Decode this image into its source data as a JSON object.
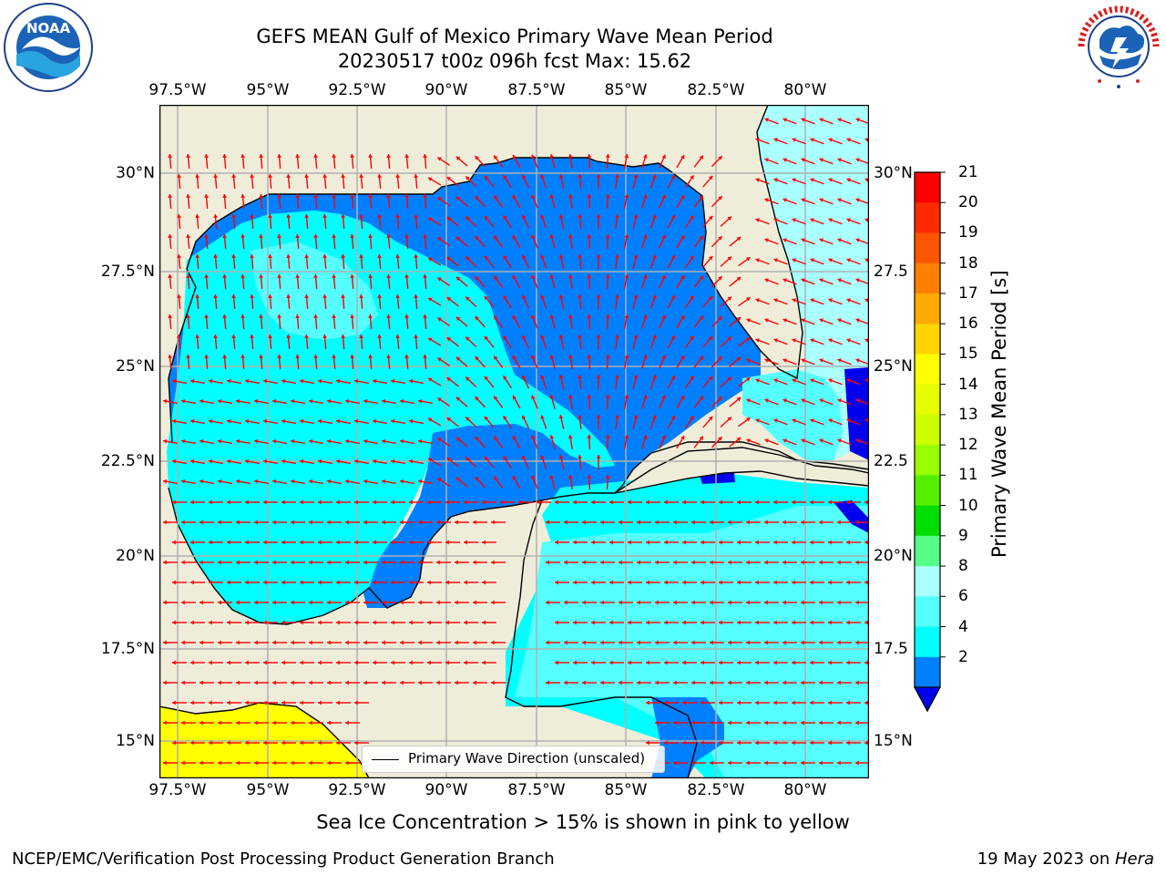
{
  "title_line1": "GEFS MEAN Gulf of Mexico Primary Wave Mean Period",
  "title_line2": "20230517 t00z 096h fcst   Max: 15.62",
  "lon_ticks": [
    "97.5°W",
    "95°W",
    "92.5°W",
    "90°W",
    "87.5°W",
    "85°W",
    "82.5°W",
    "80°W"
  ],
  "lat_ticks_left": [
    "30°N",
    "27.5°N",
    "25°N",
    "22.5°N",
    "20°N",
    "17.5°N",
    "15°N"
  ],
  "lat_ticks_right": [
    "30°N",
    "27.5",
    "25°N",
    "22.5",
    "20°N",
    "17.5",
    "15°N"
  ],
  "legend_label": "Primary Wave Direction (unscaled)",
  "colorbar": {
    "title": "Primary Wave Mean Period [s]",
    "labels": [
      "21",
      "20",
      "19",
      "18",
      "17",
      "16",
      "15",
      "14",
      "13",
      "12",
      "11",
      "10",
      "9",
      "8",
      "6",
      "4",
      "2"
    ],
    "colors": [
      "#ff0000",
      "#ff2a00",
      "#ff5500",
      "#ff8000",
      "#ffaa00",
      "#ffd400",
      "#ffff00",
      "#e6ff00",
      "#ccff00",
      "#99ff00",
      "#55ee00",
      "#00dd00",
      "#55ff88",
      "#aaffff",
      "#55ffff",
      "#00ffff",
      "#0080ff"
    ],
    "extend_color": "#0000ee"
  },
  "map_colors": {
    "land": "#efedda",
    "class_2_4": "#0080ff",
    "class_4_6": "#00ffff",
    "class_6_8": "#55ffff",
    "class_8_9": "#aaffff",
    "class_lt_2": "#0000ee",
    "ice_yellow": "#ffff00",
    "arrow": "#ff0000"
  },
  "ice_note": "Sea Ice Concentration > 15% is shown in pink to yellow",
  "footer_left": "NCEP/EMC/Verification Post Processing Product Generation Branch",
  "footer_date": "19 May 2023 on ",
  "footer_host": "Hera",
  "logos": {
    "noaa": "NOAA",
    "nws": "NATIONAL WEATHER SERVICE"
  }
}
